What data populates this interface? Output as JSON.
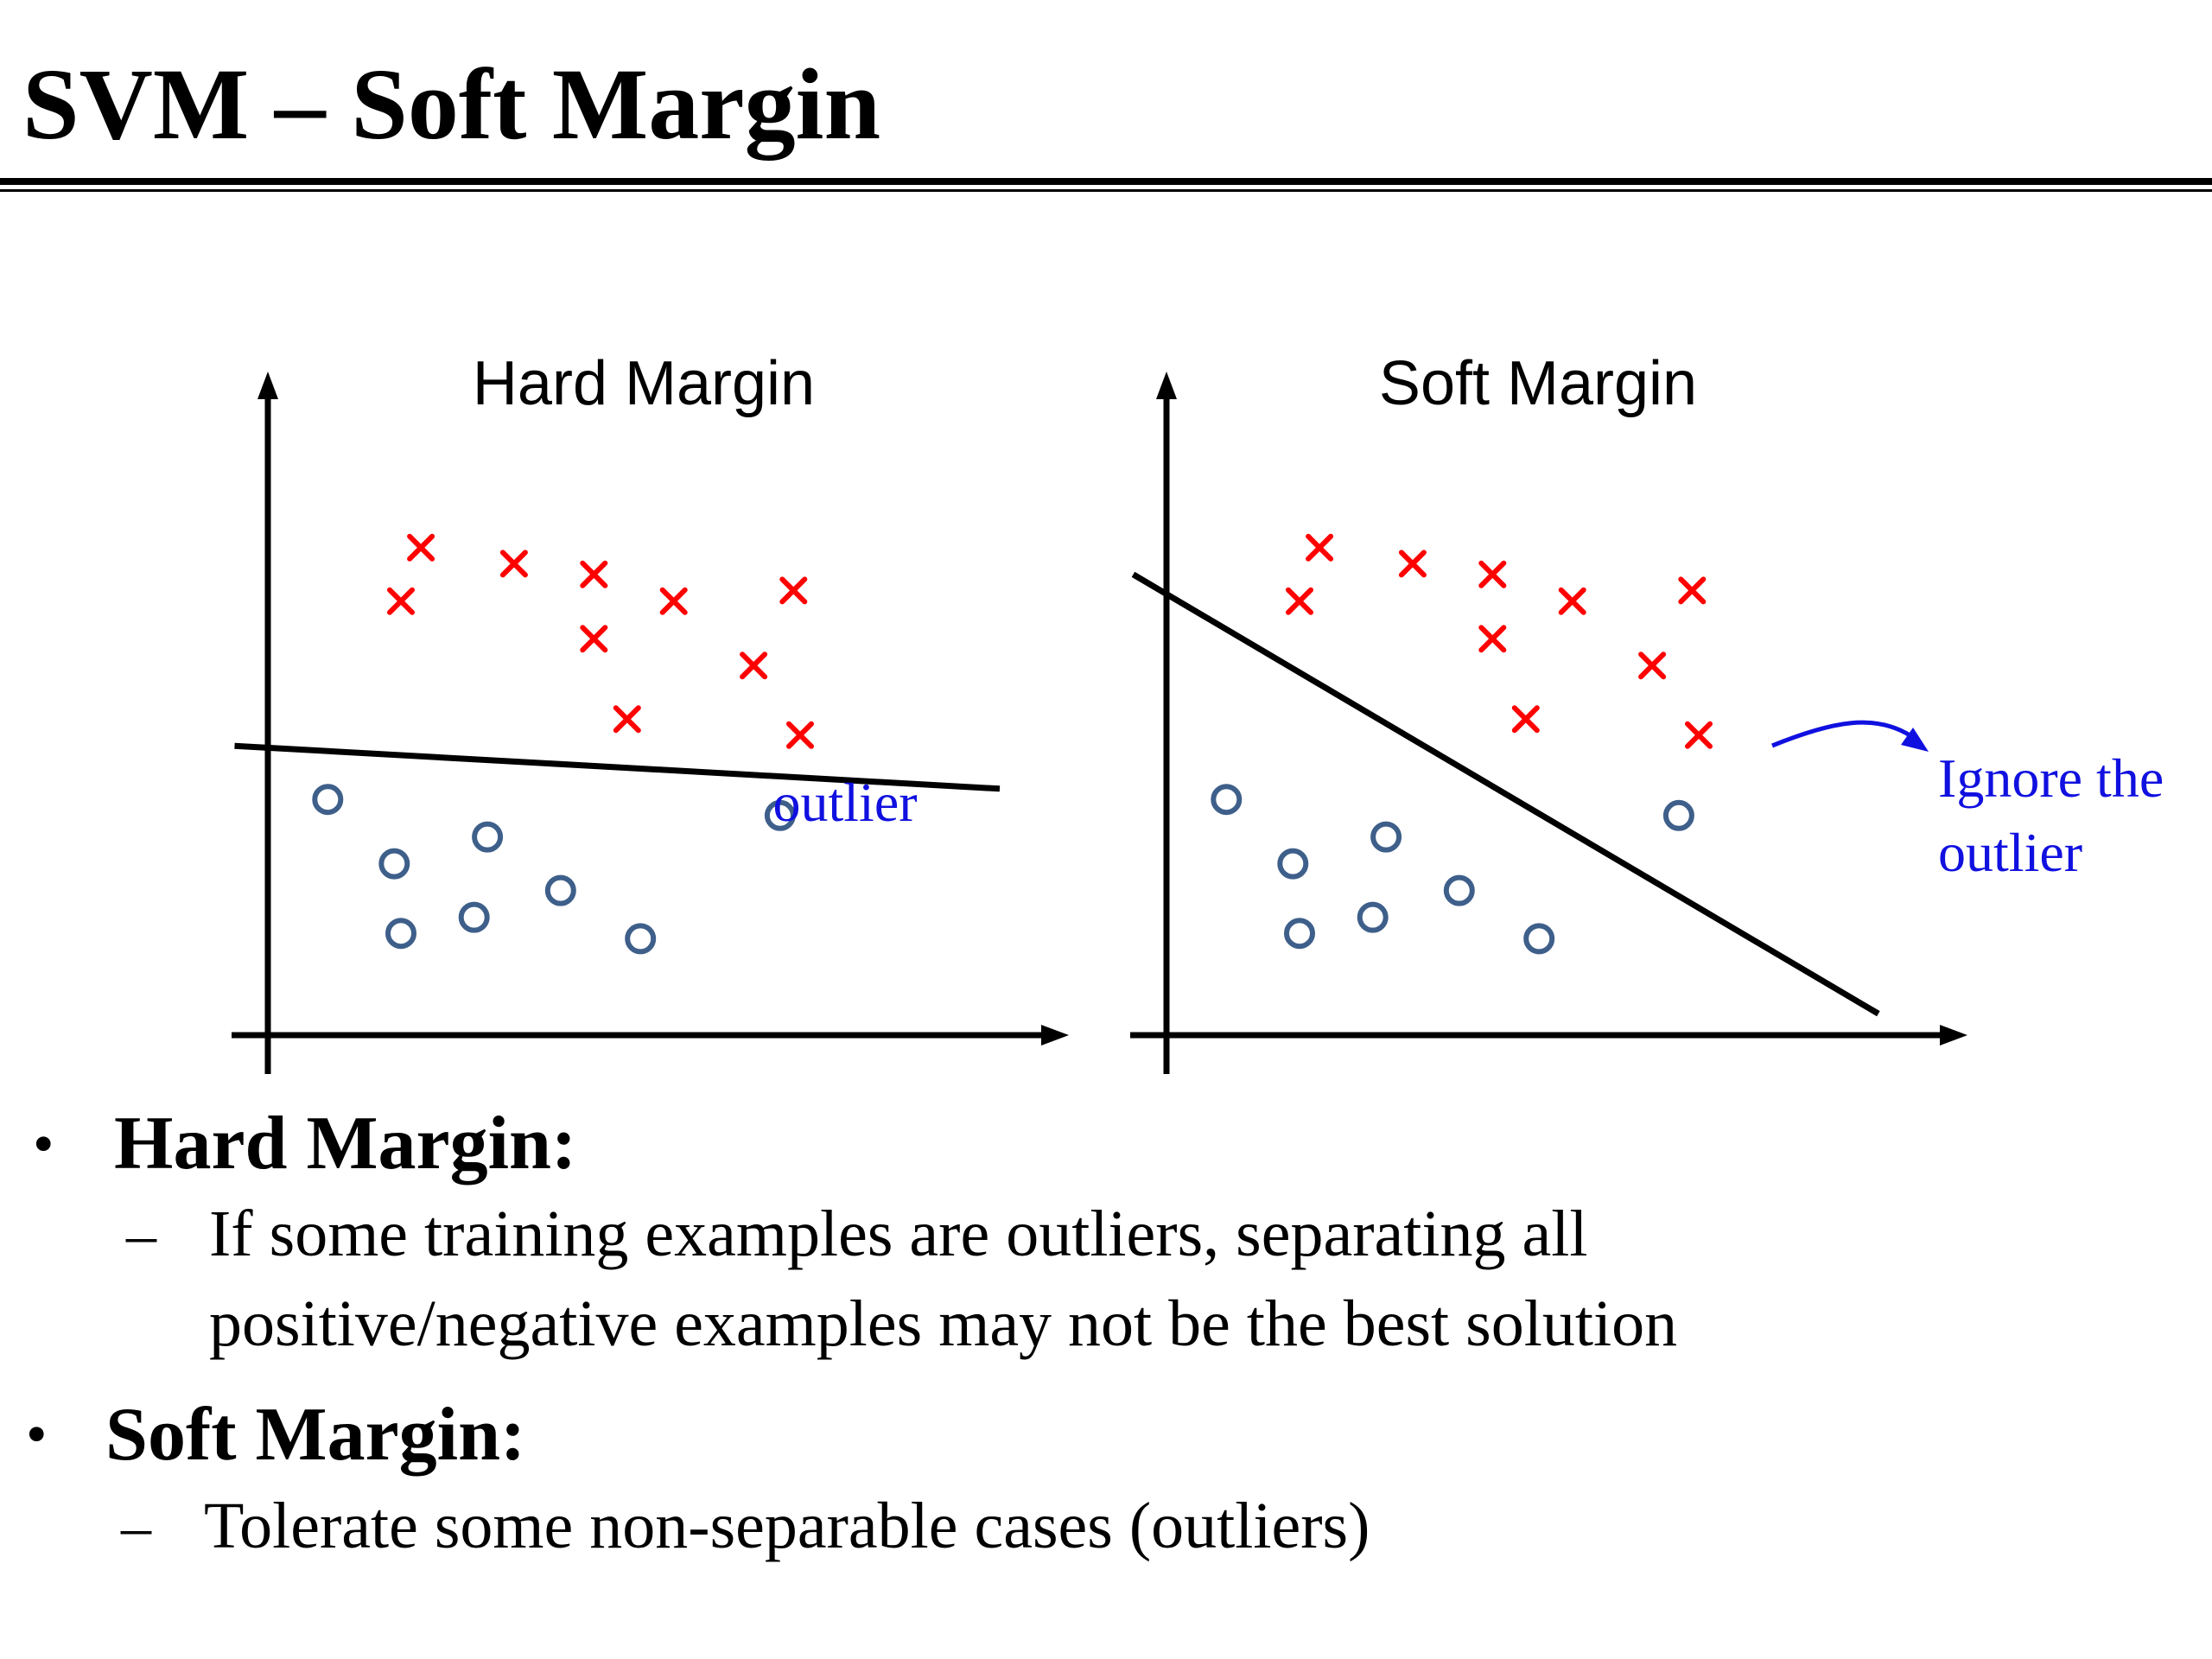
{
  "slide": {
    "title": "SVM – Soft Margin"
  },
  "diagram": {
    "left_panel": {
      "title": "Hard Margin",
      "annotation": "outlier",
      "positives": [
        [
          2.3,
          9.1
        ],
        [
          3.7,
          8.8
        ],
        [
          4.9,
          8.6
        ],
        [
          6.1,
          8.1
        ],
        [
          7.9,
          8.3
        ],
        [
          2.0,
          8.1
        ],
        [
          4.9,
          7.4
        ],
        [
          7.3,
          6.9
        ],
        [
          5.4,
          5.9
        ],
        [
          8.0,
          5.6
        ]
      ],
      "negatives": [
        [
          0.9,
          4.4
        ],
        [
          3.3,
          3.7
        ],
        [
          1.9,
          3.2
        ],
        [
          4.4,
          2.7
        ],
        [
          3.1,
          2.2
        ],
        [
          2.0,
          1.9
        ],
        [
          5.6,
          1.8
        ],
        [
          7.7,
          4.1
        ]
      ],
      "boundary": [
        [
          -0.5,
          5.4
        ],
        [
          11.0,
          4.6
        ]
      ]
    },
    "right_panel": {
      "title": "Soft Margin",
      "annotation": [
        "Ignore the",
        "outlier"
      ],
      "positives": [
        [
          2.3,
          9.1
        ],
        [
          3.7,
          8.8
        ],
        [
          4.9,
          8.6
        ],
        [
          6.1,
          8.1
        ],
        [
          7.9,
          8.3
        ],
        [
          2.0,
          8.1
        ],
        [
          4.9,
          7.4
        ],
        [
          7.3,
          6.9
        ],
        [
          5.4,
          5.9
        ],
        [
          8.0,
          5.6
        ]
      ],
      "negatives": [
        [
          0.9,
          4.4
        ],
        [
          3.3,
          3.7
        ],
        [
          1.9,
          3.2
        ],
        [
          4.4,
          2.7
        ],
        [
          3.1,
          2.2
        ],
        [
          2.0,
          1.9
        ],
        [
          5.6,
          1.8
        ],
        [
          7.7,
          4.1
        ]
      ],
      "boundary": [
        [
          -0.5,
          8.6
        ],
        [
          10.7,
          0.4
        ]
      ]
    },
    "colors": {
      "positive": "#ff0000",
      "negative": "#3e5f8a",
      "axis": "#000000",
      "boundary": "#000000",
      "annotation": "#1010e0"
    }
  },
  "bullets": [
    {
      "label": "Hard Margin:",
      "sub": [
        "If some training examples are outliers, separating all",
        "positive/negative examples may not be the best solution"
      ]
    },
    {
      "label": "Soft Margin:",
      "sub": [
        "Tolerate some non-separable cases (outliers)"
      ]
    }
  ],
  "glyphs": {
    "bullet": "•",
    "dash": "–"
  }
}
